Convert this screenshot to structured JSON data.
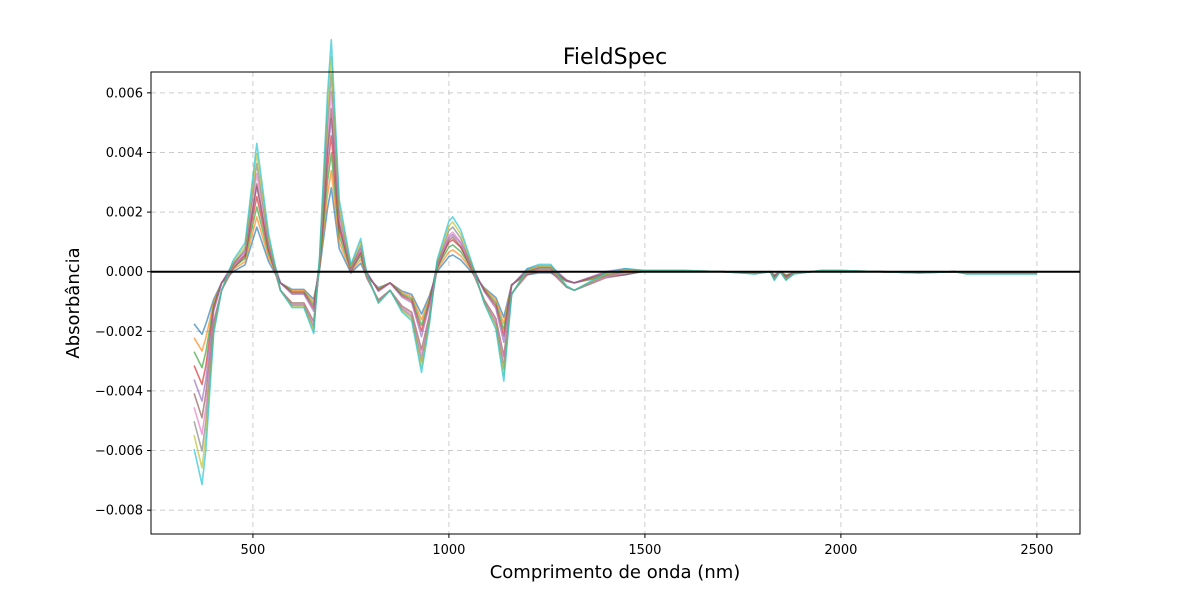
{
  "chart_data": {
    "type": "line",
    "title": "FieldSpec",
    "xlabel": "Comprimento de onda (nm)",
    "ylabel": "Absorbância",
    "xlim": [
      240,
      2610
    ],
    "ylim": [
      -0.0088,
      0.0067
    ],
    "xticks": [
      500,
      1000,
      1500,
      2000,
      2500
    ],
    "xtick_labels": [
      "500",
      "1000",
      "1500",
      "2000",
      "2500"
    ],
    "yticks": [
      -0.008,
      -0.006,
      -0.004,
      -0.002,
      0.0,
      0.002,
      0.004,
      0.006
    ],
    "ytick_labels": [
      "−0.008",
      "−0.006",
      "−0.004",
      "−0.002",
      "0.000",
      "0.002",
      "0.004",
      "0.006"
    ],
    "grid": true,
    "reference_line": {
      "y": 0.0,
      "color": "#000000"
    },
    "series_count": 10,
    "colors": [
      "#1f77b4",
      "#ff7f0e",
      "#2ca02c",
      "#d62728",
      "#9467bd",
      "#8c564b",
      "#e377c2",
      "#7f7f7f",
      "#bcbd22",
      "#17becf"
    ],
    "representative_x": [
      350,
      370,
      380,
      400,
      420,
      450,
      480,
      510,
      540,
      570,
      600,
      630,
      655,
      670,
      690,
      700,
      720,
      750,
      775,
      790,
      820,
      850,
      880,
      905,
      930,
      950,
      970,
      1000,
      1010,
      1030,
      1060,
      1090,
      1120,
      1140,
      1160,
      1200,
      1230,
      1260,
      1300,
      1320,
      1360,
      1400,
      1450,
      1500,
      1600,
      1700,
      1780,
      1820,
      1830,
      1845,
      1860,
      1880,
      1950,
      2000,
      2100,
      2200,
      2290,
      2320,
      2400,
      2500
    ],
    "representative_y": [
      -0.0035,
      -0.0042,
      -0.0035,
      -0.0015,
      -0.0005,
      0.0002,
      0.0006,
      0.0029,
      0.0008,
      -0.0005,
      -0.0009,
      -0.0009,
      -0.0015,
      0.0003,
      0.004,
      0.0053,
      0.0016,
      0.0001,
      0.0007,
      -0.0001,
      -0.0008,
      -0.0005,
      -0.001,
      -0.0012,
      -0.0024,
      -0.0013,
      0.0002,
      0.0011,
      0.0012,
      0.0009,
      0.0001,
      -0.0008,
      -0.0014,
      -0.0026,
      -0.0006,
      0.0,
      0.0001,
      0.0001,
      -0.0004,
      -0.0005,
      -0.0003,
      -0.0001,
      0.0,
      3e-05,
      3e-05,
      0.0,
      -5e-05,
      0.0,
      -0.0002,
      0.0,
      -0.0002,
      -5e-05,
      3e-05,
      3e-05,
      0.0,
      -3e-05,
      0.0,
      -5e-05,
      -5e-05,
      -5e-05
    ]
  }
}
